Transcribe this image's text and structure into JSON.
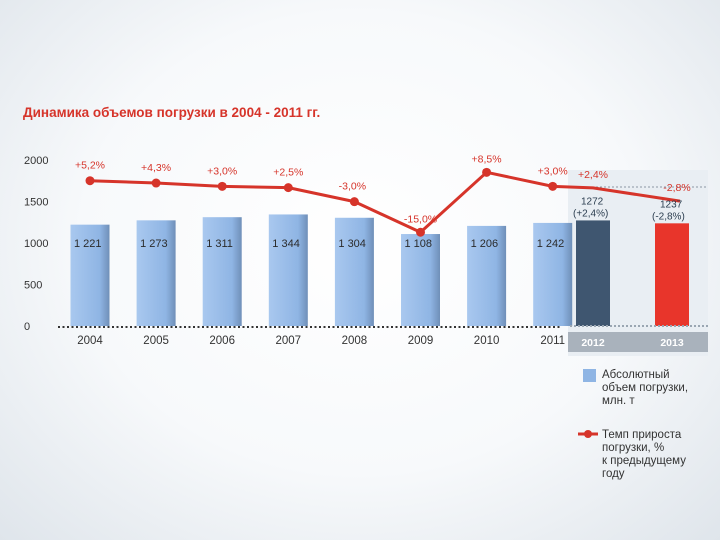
{
  "chart_data": {
    "type": "bar",
    "title": "Динамика объемов погрузки в 2004 - 2011 гг.",
    "ylim": [
      0,
      2000
    ],
    "yticks": [
      "0",
      "500",
      "1000",
      "1500",
      "2000"
    ],
    "categories": [
      "2004",
      "2005",
      "2006",
      "2007",
      "2008",
      "2009",
      "2010",
      "2011"
    ],
    "bar_labels": [
      "1 221",
      "1 273",
      "1 311",
      "1 344",
      "1 304",
      "1 108",
      "1 206",
      "1 242"
    ],
    "series": [
      {
        "name": "Абсолютный объем погрузки, млн. т",
        "type": "bar",
        "values": [
          1221,
          1273,
          1311,
          1344,
          1304,
          1108,
          1206,
          1242
        ],
        "color": "#8fb5e4"
      },
      {
        "name": "Темп прироста погрузки, % к предыдущему году",
        "type": "line",
        "values": [
          5.2,
          4.3,
          3.0,
          2.5,
          -3.0,
          -15.0,
          8.5,
          3.0
        ],
        "labels": [
          "+5,2%",
          "+4,3%",
          "+3,0%",
          "+2,5%",
          "-3,0%",
          "-15,0%",
          "+8,5%",
          "+3,0%"
        ],
        "color": "#d6342a"
      }
    ],
    "forecast": {
      "categories": [
        "2012",
        "2013"
      ],
      "values": [
        1272,
        1237
      ],
      "value_labels": [
        "1272",
        "1237"
      ],
      "delta_labels": [
        "(+2,4%)",
        "(-2,8%)"
      ],
      "growth_values": [
        2.4,
        -2.8
      ],
      "growth_labels": [
        "+2,4%",
        "-2,8%"
      ],
      "colors": [
        "#3f5670",
        "#e8352b"
      ],
      "tick_bg": "#a9b2bc"
    },
    "legend": {
      "position": "bottom-right",
      "items": [
        {
          "lines": [
            "Абсолютный",
            "объем погрузки,",
            "млн. т"
          ],
          "color": "#8fb5e4"
        },
        {
          "lines": [
            "Темп прироста",
            "погрузки, %",
            "к предыдущему",
            "году"
          ],
          "color": "#d6342a"
        }
      ]
    },
    "grid": false
  }
}
